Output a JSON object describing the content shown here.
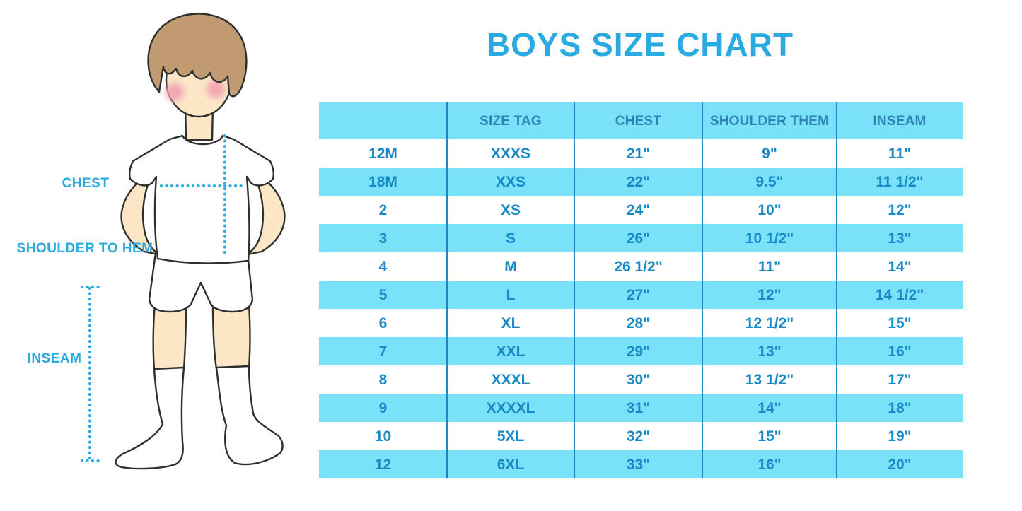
{
  "title": "BOYS SIZE CHART",
  "figure": {
    "description": "illustration of a boy in white t-shirt, shorts and socks with measurement guides",
    "labels": {
      "chest": "CHEST",
      "shoulder_to_hem": "SHOULDER TO HEM",
      "inseam": "INSEAM"
    }
  },
  "colors": {
    "accent": "#29ABE2",
    "row_band": "#79E2F8",
    "cell_text": "#1789C6",
    "header_text": "#2D84B4",
    "separator": "#1E87C0",
    "skin": "#FBE7C6",
    "hair": "#C09B71"
  },
  "chart_data": {
    "type": "table",
    "title": "BOYS SIZE CHART",
    "columns": [
      "",
      "SIZE TAG",
      "CHEST",
      "SHOULDER THEM",
      "INSEAM"
    ],
    "rows": [
      [
        "12M",
        "XXXS",
        "21\"",
        "9\"",
        "11\""
      ],
      [
        "18M",
        "XXS",
        "22\"",
        "9.5\"",
        "11 1/2\""
      ],
      [
        "2",
        "XS",
        "24\"",
        "10\"",
        "12\""
      ],
      [
        "3",
        "S",
        "26\"",
        "10 1/2\"",
        "13\""
      ],
      [
        "4",
        "M",
        "26 1/2\"",
        "11\"",
        "14\""
      ],
      [
        "5",
        "L",
        "27\"",
        "12\"",
        "14 1/2\""
      ],
      [
        "6",
        "XL",
        "28\"",
        "12 1/2\"",
        "15\""
      ],
      [
        "7",
        "XXL",
        "29\"",
        "13\"",
        "16\""
      ],
      [
        "8",
        "XXXL",
        "30\"",
        "13 1/2\"",
        "17\""
      ],
      [
        "9",
        "XXXXL",
        "31\"",
        "14\"",
        "18\""
      ],
      [
        "10",
        "5XL",
        "32\"",
        "15\"",
        "19\""
      ],
      [
        "12",
        "6XL",
        "33\"",
        "16\"",
        "20\""
      ]
    ],
    "layout": {
      "zebra": "alternating white and light blue rows, header band light blue",
      "grid": "vertical column separators only",
      "legend_position": "none"
    }
  }
}
